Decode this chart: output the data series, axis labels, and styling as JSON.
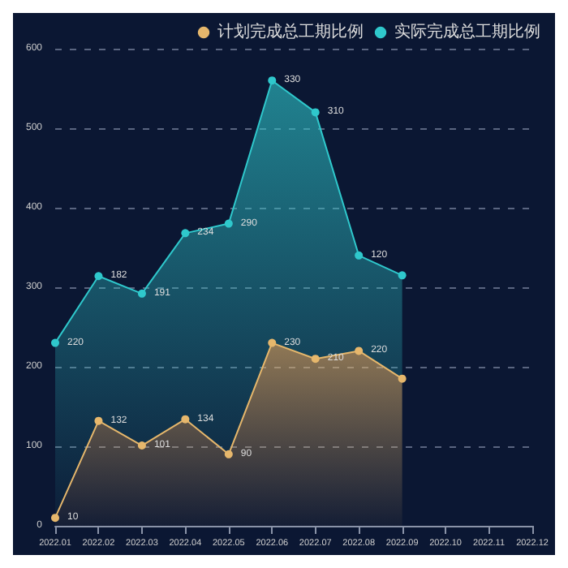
{
  "chart_data": {
    "type": "area",
    "stacked": true,
    "categories": [
      "2022.01",
      "2022.02",
      "2022.03",
      "2022.04",
      "2022.05",
      "2022.06",
      "2022.07",
      "2022.08",
      "2022.09",
      "2022.10",
      "2022.11",
      "2022.12"
    ],
    "series": [
      {
        "name": "计划完成总工期比例",
        "color": "#e6b76c",
        "values": [
          10,
          132,
          101,
          134,
          90,
          230,
          210,
          220,
          185,
          null,
          null,
          null
        ],
        "value_labels": [
          "10",
          "132",
          "101",
          "134",
          "90",
          "230",
          "210",
          "220",
          null,
          null,
          null,
          null
        ]
      },
      {
        "name": "实际完成总工期比例",
        "color": "#2fc8cc",
        "values": [
          220,
          182,
          191,
          234,
          290,
          330,
          310,
          120,
          130,
          null,
          null,
          null
        ],
        "value_labels": [
          "220",
          "182",
          "191",
          "234",
          "290",
          "330",
          "310",
          "120",
          null,
          null,
          null,
          null
        ]
      }
    ],
    "ylim": [
      0,
      600
    ],
    "yticks": [
      0,
      100,
      200,
      300,
      400,
      500,
      600
    ],
    "grid": "y",
    "legend": "top right",
    "marker": "circle",
    "line_style": "solid"
  }
}
